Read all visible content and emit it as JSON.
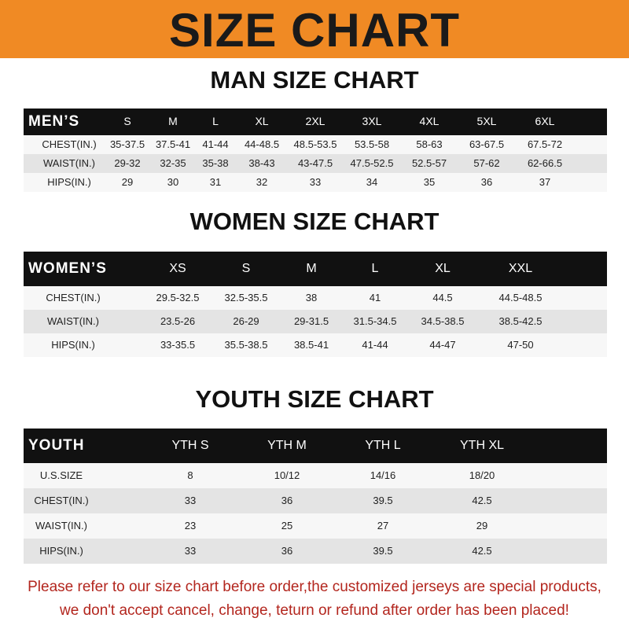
{
  "header": {
    "title": "SIZE CHART"
  },
  "tables": [
    {
      "title": "MAN SIZE CHART",
      "columns": [
        "MEN’S",
        "S",
        "M",
        "L",
        "XL",
        "2XL",
        "3XL",
        "4XL",
        "5XL",
        "6XL"
      ],
      "rows": [
        [
          "CHEST(IN.)",
          "35-37.5",
          "37.5-41",
          "41-44",
          "44-48.5",
          "48.5-53.5",
          "53.5-58",
          "58-63",
          "63-67.5",
          "67.5-72"
        ],
        [
          "WAIST(IN.)",
          "29-32",
          "32-35",
          "35-38",
          "38-43",
          "43-47.5",
          "47.5-52.5",
          "52.5-57",
          "57-62",
          "62-66.5"
        ],
        [
          "HIPS(IN.)",
          "29",
          "30",
          "31",
          "32",
          "33",
          "34",
          "35",
          "36",
          "37"
        ]
      ]
    },
    {
      "title": "WOMEN SIZE CHART",
      "columns": [
        "WOMEN’S",
        "XS",
        "S",
        "M",
        "L",
        "XL",
        "XXL"
      ],
      "rows": [
        [
          "CHEST(IN.)",
          "29.5-32.5",
          "32.5-35.5",
          "38",
          "41",
          "44.5",
          "44.5-48.5"
        ],
        [
          "WAIST(IN.)",
          "23.5-26",
          "26-29",
          "29-31.5",
          "31.5-34.5",
          "34.5-38.5",
          "38.5-42.5"
        ],
        [
          "HIPS(IN.)",
          "33-35.5",
          "35.5-38.5",
          "38.5-41",
          "41-44",
          "44-47",
          "47-50"
        ]
      ]
    },
    {
      "title": "YOUTH SIZE CHART",
      "columns": [
        "YOUTH",
        "YTH S",
        "YTH M",
        "YTH L",
        "YTH XL"
      ],
      "rows": [
        [
          "U.S.SIZE",
          "8",
          "10/12",
          "14/16",
          "18/20"
        ],
        [
          "CHEST(IN.)",
          "33",
          "36",
          "39.5",
          "42.5"
        ],
        [
          "WAIST(IN.)",
          "23",
          "25",
          "27",
          "29"
        ],
        [
          "HIPS(IN.)",
          "33",
          "36",
          "39.5",
          "42.5"
        ]
      ]
    }
  ],
  "notice": [
    "Please refer to our size chart before order,the customized jerseys are special products,",
    "we don't accept cancel, change, teturn or refund after order has been placed!"
  ]
}
